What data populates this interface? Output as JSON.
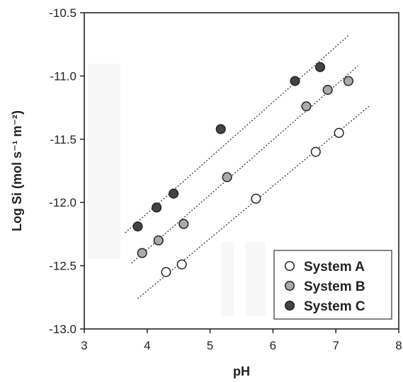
{
  "chart_data": {
    "type": "scatter",
    "xlabel": "pH",
    "ylabel": "Log Si (mol s⁻¹ m⁻²)",
    "xlim": [
      3,
      8
    ],
    "ylim": [
      -13.0,
      -10.5
    ],
    "x_ticks": [
      3,
      4,
      5,
      6,
      7,
      8
    ],
    "y_ticks": [
      -13.0,
      -12.5,
      -12.0,
      -11.5,
      -11.0,
      -10.5
    ],
    "grid": false,
    "legend_position": "bottom-right",
    "series": [
      {
        "name": "System A",
        "color": "#ffffff",
        "x": [
          4.3,
          4.55,
          5.73,
          6.68,
          7.05
        ],
        "y": [
          -12.55,
          -12.49,
          -11.97,
          -11.6,
          -11.45
        ],
        "trendline": {
          "x": [
            3.85,
            7.55
          ],
          "y": [
            -12.76,
            -11.23
          ]
        }
      },
      {
        "name": "System B",
        "color": "#aaaaaa",
        "x": [
          3.92,
          4.18,
          4.58,
          5.27,
          6.53,
          6.87,
          7.2
        ],
        "y": [
          -12.4,
          -12.3,
          -12.17,
          -11.8,
          -11.24,
          -11.11,
          -11.04
        ],
        "trendline": {
          "x": [
            3.75,
            7.35
          ],
          "y": [
            -12.48,
            -10.92
          ]
        }
      },
      {
        "name": "System C",
        "color": "#444444",
        "x": [
          3.85,
          4.15,
          4.42,
          5.17,
          6.35,
          6.75
        ],
        "y": [
          -12.19,
          -12.04,
          -11.93,
          -11.42,
          -11.04,
          -10.93
        ],
        "trendline": {
          "x": [
            3.65,
            7.2
          ],
          "y": [
            -12.24,
            -10.68
          ]
        }
      }
    ]
  }
}
